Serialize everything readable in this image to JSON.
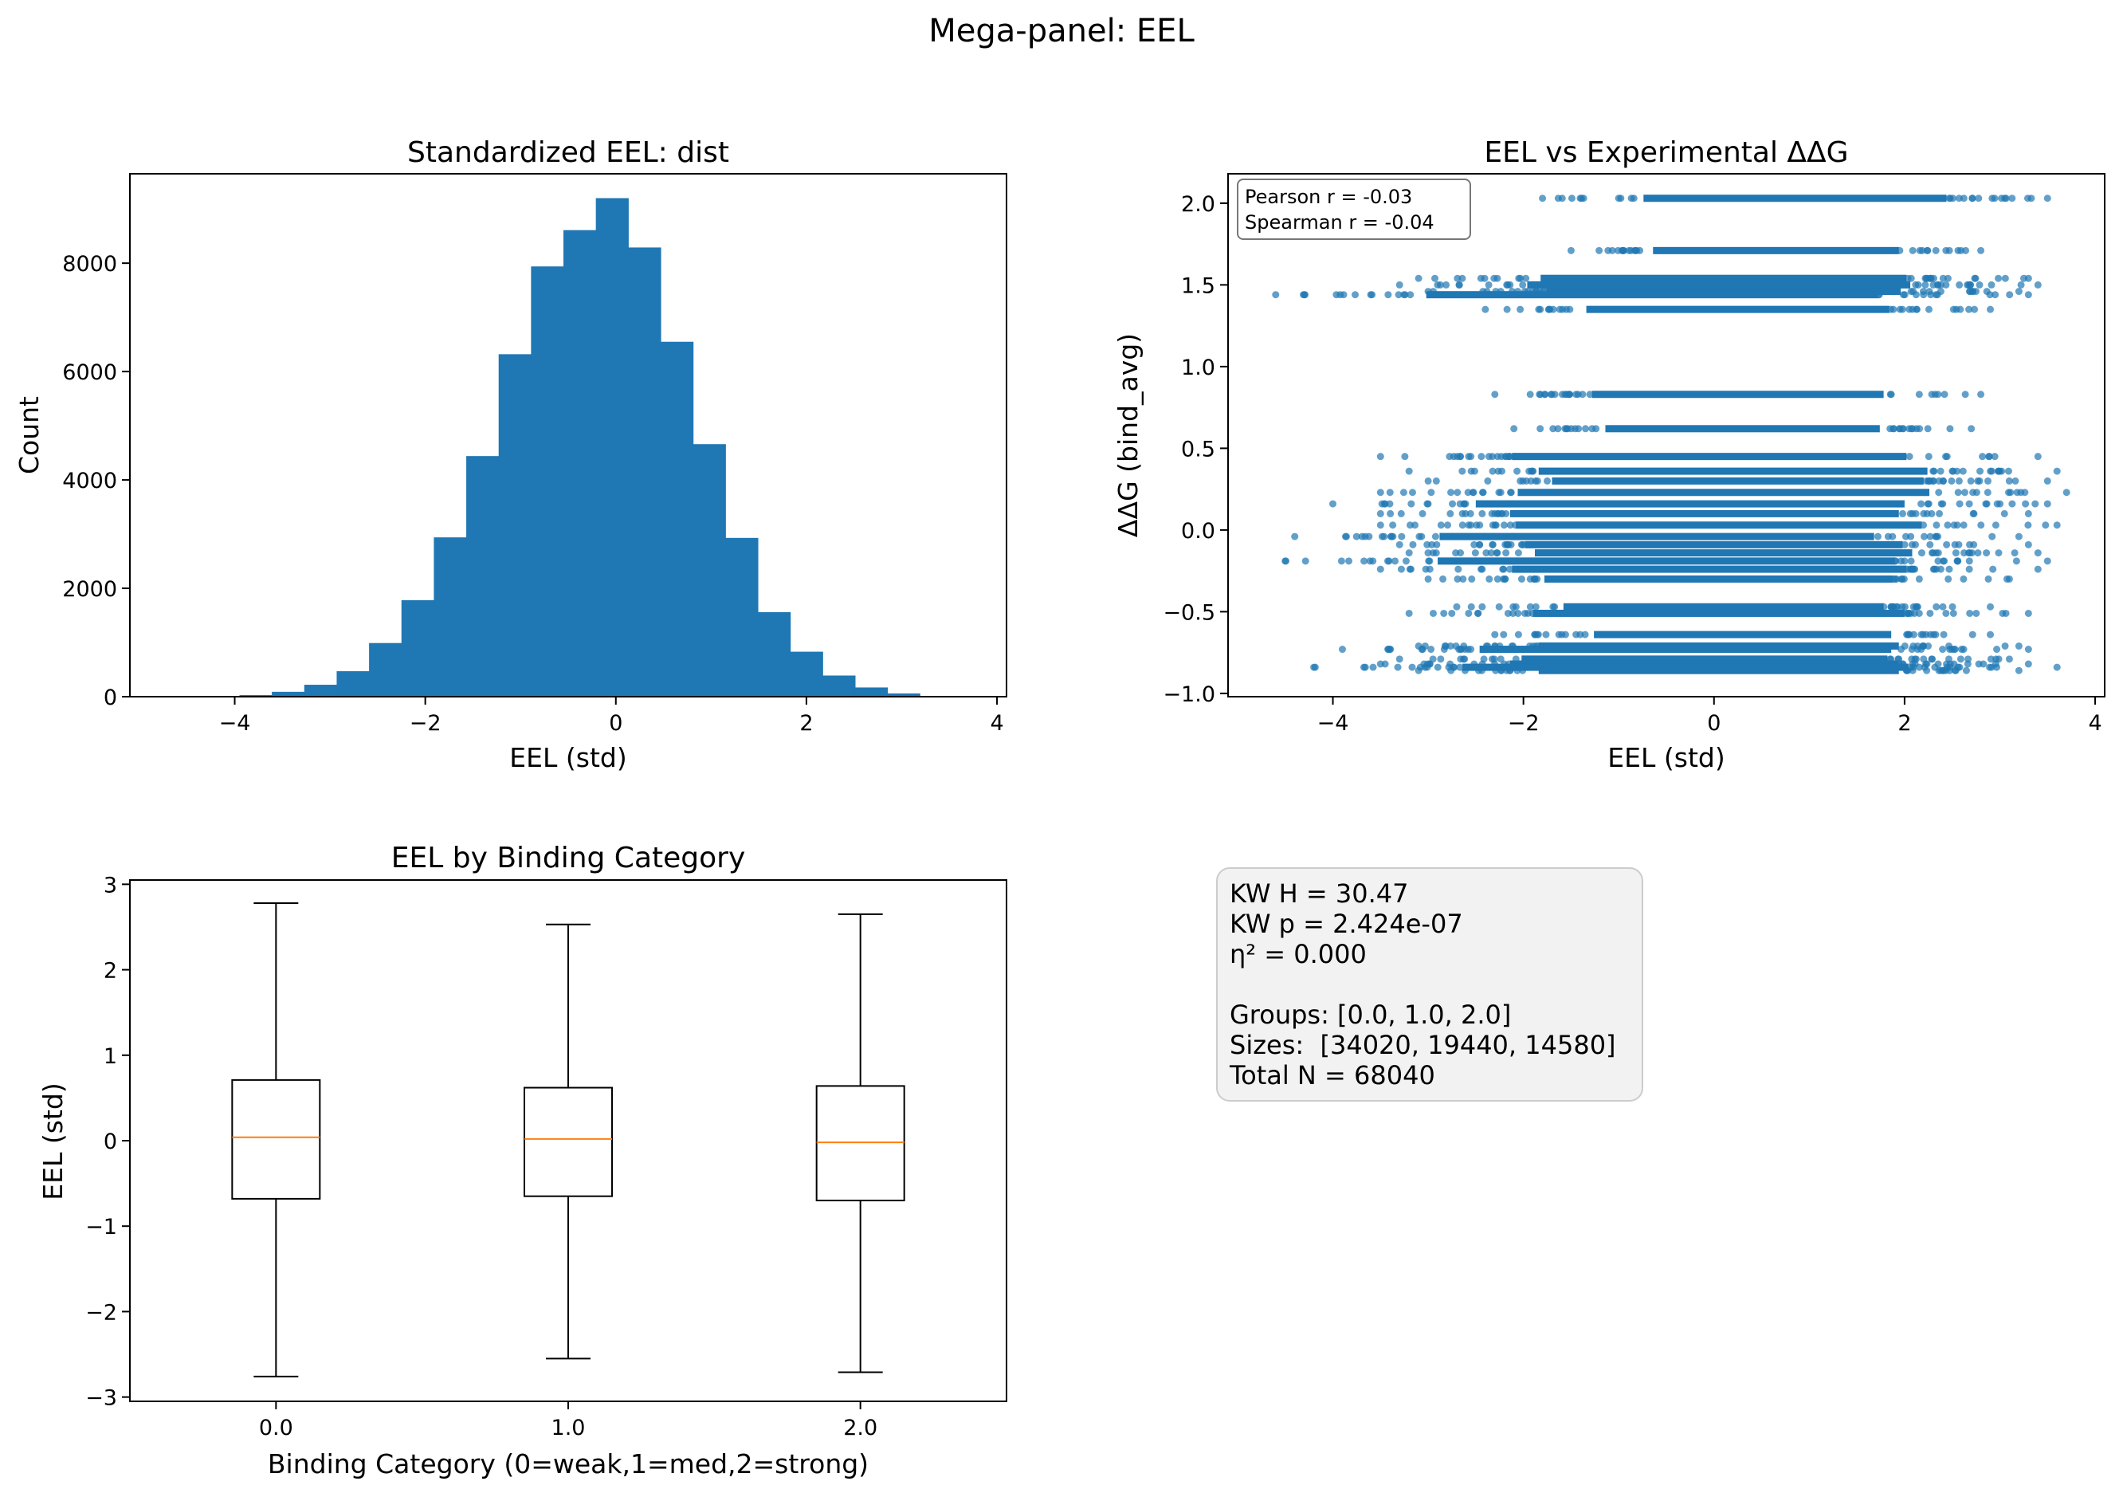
{
  "figure_title": "Mega-panel: EEL",
  "chart_data": [
    {
      "id": "hist",
      "type": "bar",
      "title": "Standardized EEL: dist",
      "xlabel": "EEL (std)",
      "ylabel": "Count",
      "xlim": [
        -5.1,
        4.1
      ],
      "ylim": [
        0,
        9650
      ],
      "xticks": [
        -4,
        -2,
        0,
        2,
        4
      ],
      "yticks": [
        0,
        2000,
        4000,
        6000,
        8000
      ],
      "bin_edges": [
        -4.63,
        -4.29,
        -3.95,
        -3.61,
        -3.27,
        -2.93,
        -2.59,
        -2.25,
        -1.91,
        -1.57,
        -1.23,
        -0.89,
        -0.55,
        -0.21,
        0.13,
        0.47,
        0.81,
        1.15,
        1.49,
        1.83,
        2.17,
        2.51,
        2.85,
        3.19,
        3.53
      ],
      "values": [
        5,
        10,
        30,
        90,
        220,
        470,
        990,
        1780,
        2940,
        4440,
        6320,
        7940,
        8610,
        9200,
        8290,
        6550,
        4660,
        2930,
        1560,
        830,
        390,
        170,
        60,
        10
      ],
      "color": "#1f77b4"
    },
    {
      "id": "scatter",
      "type": "scatter",
      "title": "EEL vs Experimental ΔΔG",
      "xlabel": "EEL (std)",
      "ylabel": "ΔΔG (bind_avg)",
      "xlim": [
        -5.1,
        4.1
      ],
      "ylim": [
        -1.02,
        2.18
      ],
      "xticks": [
        -4,
        -2,
        0,
        2,
        4
      ],
      "yticks": [
        -1.0,
        -0.5,
        0.0,
        0.5,
        1.0,
        1.5,
        2.0
      ],
      "annotation": [
        "Pearson r = -0.03",
        "Spearman r = -0.04"
      ],
      "color": "#1f77b4",
      "bands": [
        {
          "y": 2.03,
          "x": [
            -1.8,
            3.5
          ]
        },
        {
          "y": 1.71,
          "x": [
            -1.5,
            2.8
          ]
        },
        {
          "y": 1.54,
          "x": [
            -3.1,
            3.3
          ]
        },
        {
          "y": 1.5,
          "x": [
            -3.3,
            3.4
          ]
        },
        {
          "y": 1.46,
          "x": [
            -3.0,
            3.2
          ]
        },
        {
          "y": 1.44,
          "x": [
            -4.6,
            3.3
          ]
        },
        {
          "y": 1.35,
          "x": [
            -2.4,
            2.9
          ]
        },
        {
          "y": 0.83,
          "x": [
            -2.3,
            2.8
          ]
        },
        {
          "y": 0.62,
          "x": [
            -2.1,
            2.7
          ]
        },
        {
          "y": 0.45,
          "x": [
            -3.5,
            3.4
          ]
        },
        {
          "y": 0.36,
          "x": [
            -3.2,
            3.6
          ]
        },
        {
          "y": 0.3,
          "x": [
            -3.0,
            3.5
          ]
        },
        {
          "y": 0.23,
          "x": [
            -3.5,
            3.7
          ]
        },
        {
          "y": 0.16,
          "x": [
            -4.0,
            3.5
          ]
        },
        {
          "y": 0.1,
          "x": [
            -3.5,
            3.3
          ]
        },
        {
          "y": 0.03,
          "x": [
            -3.5,
            3.6
          ]
        },
        {
          "y": -0.04,
          "x": [
            -4.4,
            3.2
          ]
        },
        {
          "y": -0.09,
          "x": [
            -3.3,
            3.3
          ]
        },
        {
          "y": -0.14,
          "x": [
            -3.2,
            3.4
          ]
        },
        {
          "y": -0.19,
          "x": [
            -4.5,
            3.5
          ]
        },
        {
          "y": -0.24,
          "x": [
            -3.5,
            3.4
          ]
        },
        {
          "y": -0.3,
          "x": [
            -3.0,
            3.1
          ]
        },
        {
          "y": -0.47,
          "x": [
            -2.7,
            2.9
          ]
        },
        {
          "y": -0.51,
          "x": [
            -3.2,
            3.3
          ]
        },
        {
          "y": -0.64,
          "x": [
            -2.3,
            2.9
          ]
        },
        {
          "y": -0.71,
          "x": [
            -3.1,
            3.2
          ]
        },
        {
          "y": -0.73,
          "x": [
            -3.9,
            3.3
          ]
        },
        {
          "y": -0.79,
          "x": [
            -3.3,
            3.1
          ]
        },
        {
          "y": -0.82,
          "x": [
            -3.5,
            3.3
          ]
        },
        {
          "y": -0.84,
          "x": [
            -4.2,
            3.6
          ]
        },
        {
          "y": -0.86,
          "x": [
            -3.1,
            3.2
          ]
        }
      ]
    },
    {
      "id": "box",
      "type": "box",
      "title": "EEL by Binding Category",
      "xlabel": "Binding Category (0=weak,1=med,2=strong)",
      "ylabel": "EEL (std)",
      "ylim": [
        -3.05,
        3.05
      ],
      "yticks": [
        -3,
        -2,
        -1,
        0,
        1,
        2,
        3
      ],
      "categories": [
        "0.0",
        "1.0",
        "2.0"
      ],
      "boxes": [
        {
          "whisker_low": -2.76,
          "q1": -0.68,
          "median": 0.04,
          "q3": 0.71,
          "whisker_high": 2.78
        },
        {
          "whisker_low": -2.55,
          "q1": -0.65,
          "median": 0.02,
          "q3": 0.62,
          "whisker_high": 2.53
        },
        {
          "whisker_low": -2.71,
          "q1": -0.7,
          "median": -0.02,
          "q3": 0.64,
          "whisker_high": 2.65
        }
      ],
      "median_color": "#ff7f0e"
    }
  ],
  "stats": {
    "lines": [
      "KW H = 30.47",
      "KW p = 2.424e-07",
      "η² = 0.000",
      "",
      "Groups: [0.0, 1.0, 2.0]",
      "Sizes:  [34020, 19440, 14580]",
      "Total N = 68040"
    ]
  }
}
